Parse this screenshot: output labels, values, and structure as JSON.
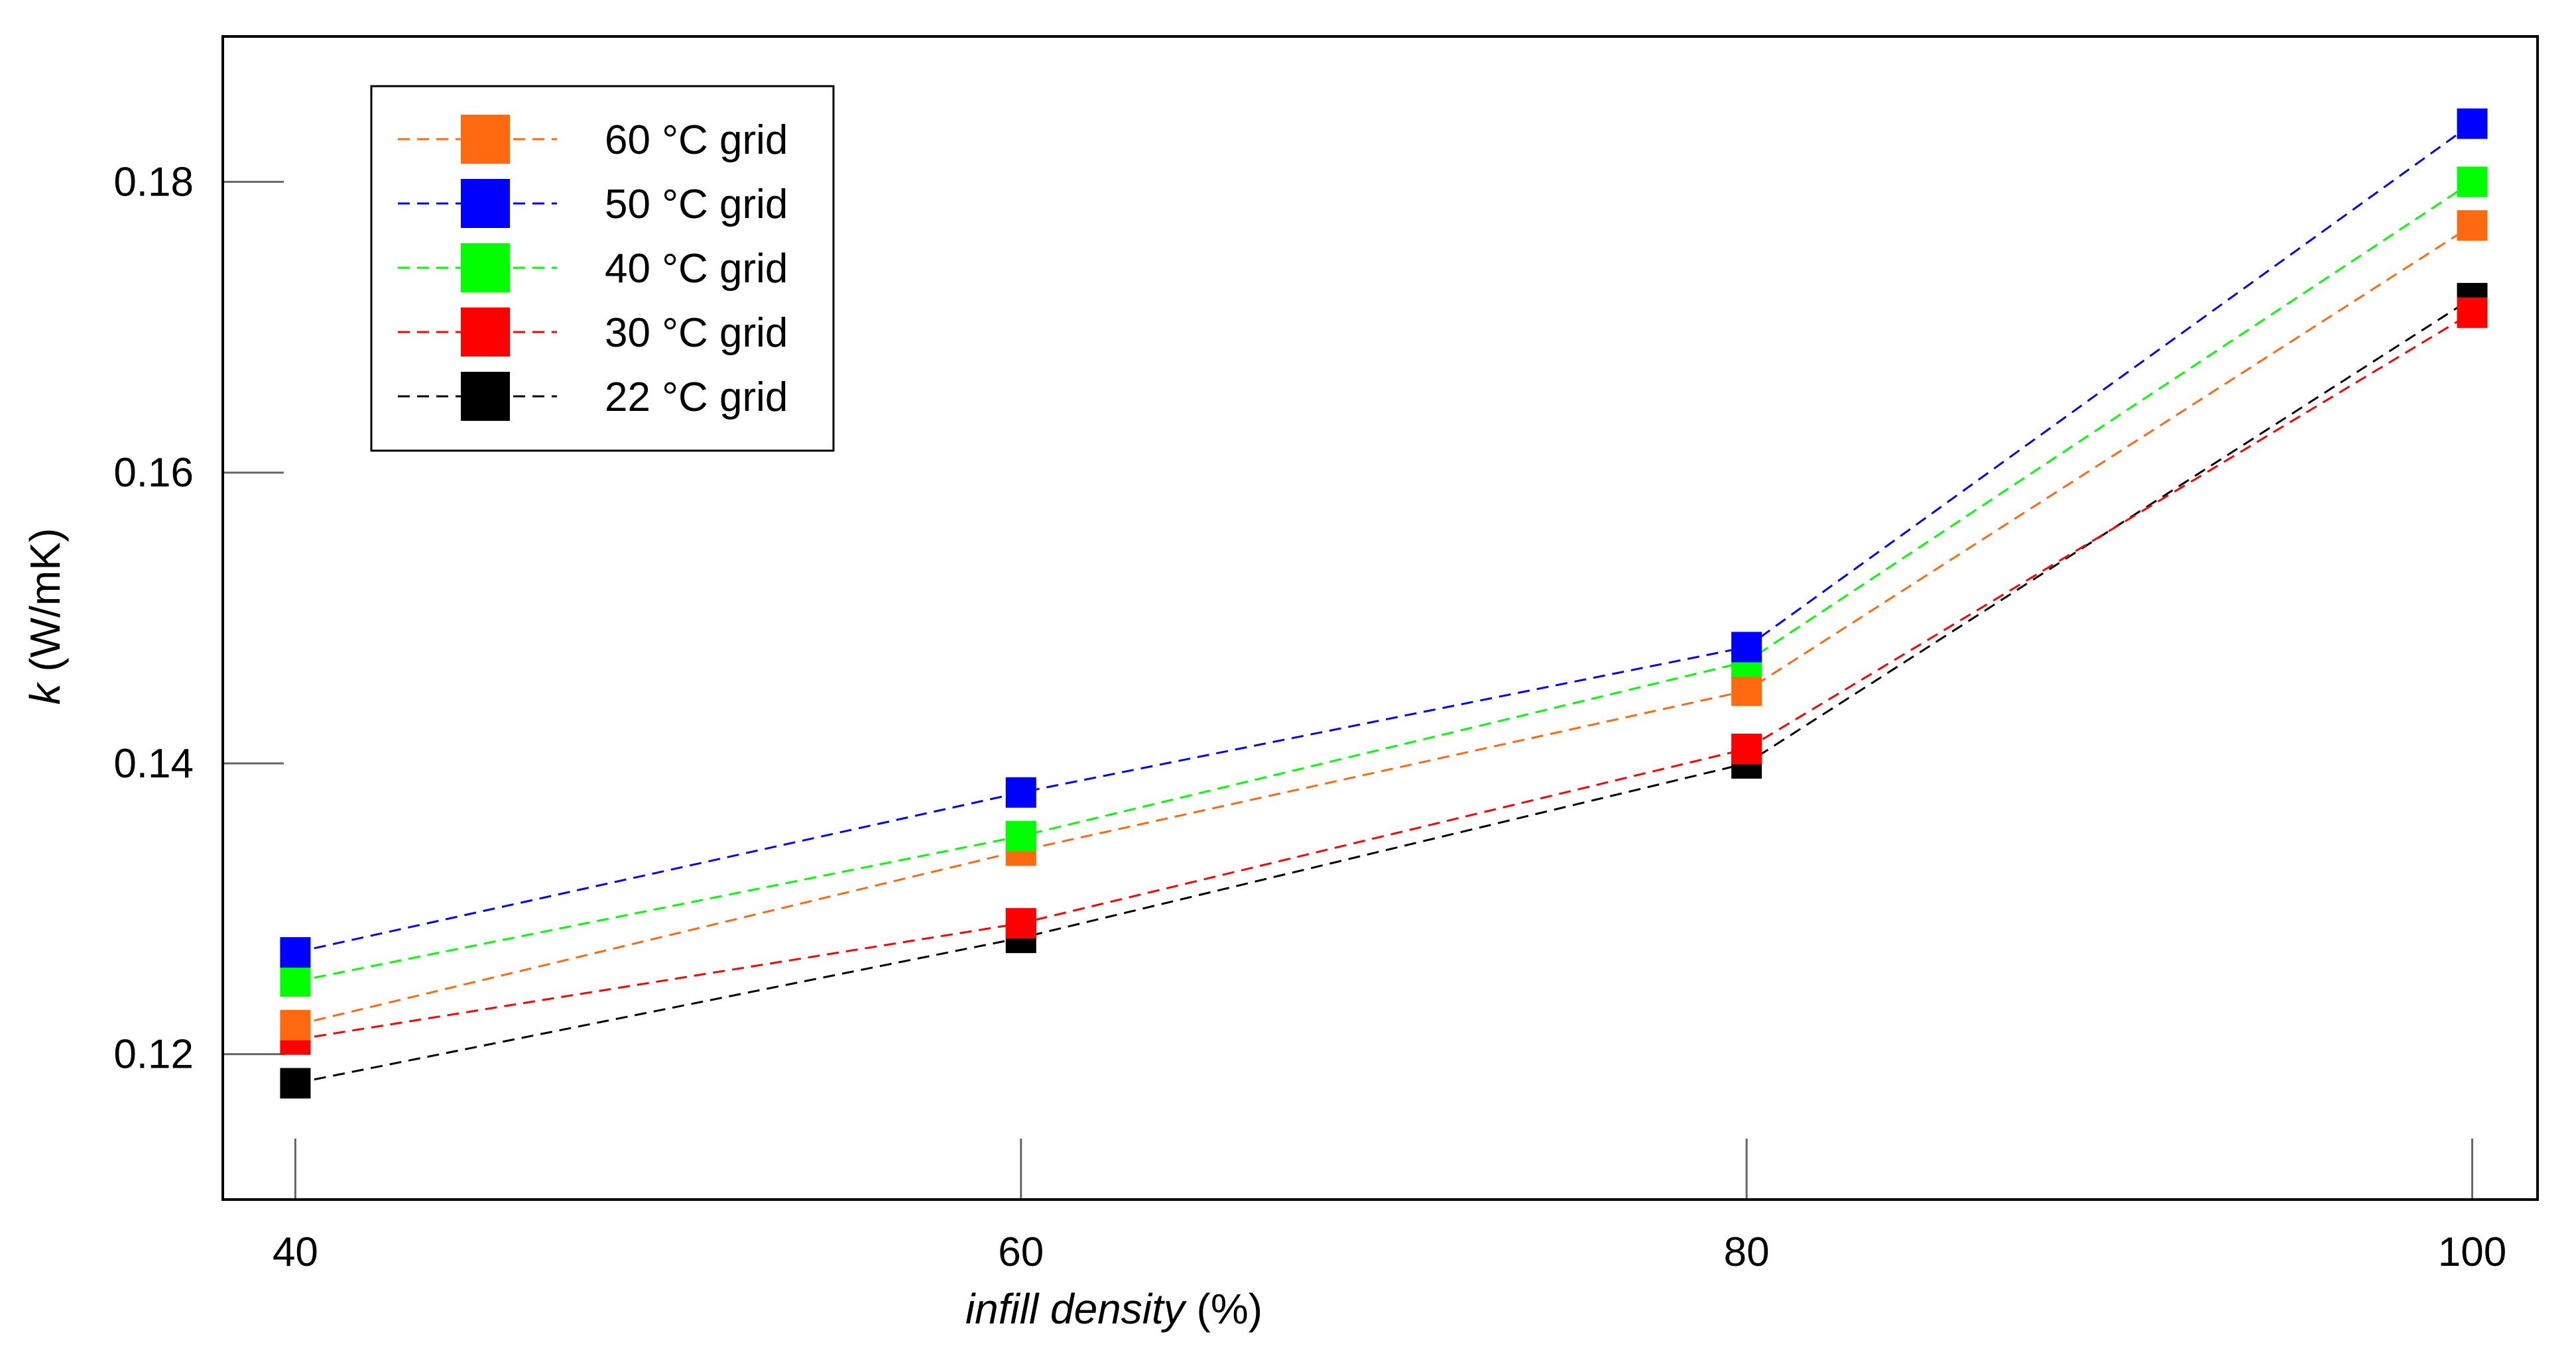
{
  "chart_data": {
    "type": "line",
    "title": "",
    "xlabel_italic": "infill density",
    "xlabel_rest": " (%)",
    "ylabel_italic": "k",
    "ylabel_rest": " (W/mK)",
    "x": [
      40,
      60,
      80,
      100
    ],
    "x_tick_labels": [
      "40",
      "60",
      "80",
      "100"
    ],
    "xlim": [
      38,
      101.8
    ],
    "y_ticks": [
      0.12,
      0.14,
      0.16,
      0.18
    ],
    "y_tick_labels": [
      "0.12",
      "0.14",
      "0.16",
      "0.18"
    ],
    "ylim": [
      0.11,
      0.19
    ],
    "grid": false,
    "legend_position": "top-left",
    "series": [
      {
        "name": "60 °C grid",
        "color": "#FF6A10",
        "values": [
          0.122,
          0.134,
          0.145,
          0.177
        ]
      },
      {
        "name": "50 °C grid",
        "color": "#0000FF",
        "values": [
          0.127,
          0.138,
          0.148,
          0.184
        ]
      },
      {
        "name": "40 °C grid",
        "color": "#00FF00",
        "values": [
          0.125,
          0.135,
          0.147,
          0.18
        ]
      },
      {
        "name": "30 °C grid",
        "color": "#FF0000",
        "values": [
          0.121,
          0.129,
          0.141,
          0.171
        ]
      },
      {
        "name": "22 °C grid",
        "color": "#000000",
        "values": [
          0.118,
          0.128,
          0.14,
          0.172
        ]
      }
    ],
    "draw_order": [
      "22 °C grid",
      "30 °C grid",
      "60 °C grid",
      "40 °C grid",
      "50 °C grid"
    ]
  }
}
